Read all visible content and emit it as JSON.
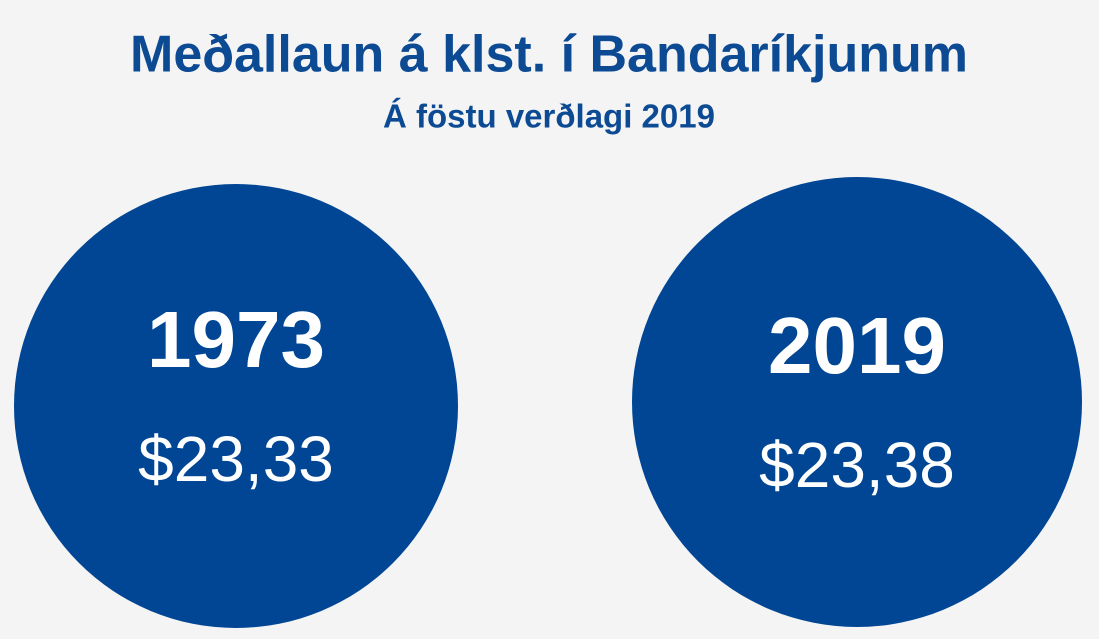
{
  "header": {
    "title": "Meðallaun á klst. í Bandaríkjunum",
    "subtitle": "Á föstu verðlagi 2019"
  },
  "items": [
    {
      "year": "1973",
      "value": "$23,33"
    },
    {
      "year": "2019",
      "value": "$23,38"
    }
  ]
}
